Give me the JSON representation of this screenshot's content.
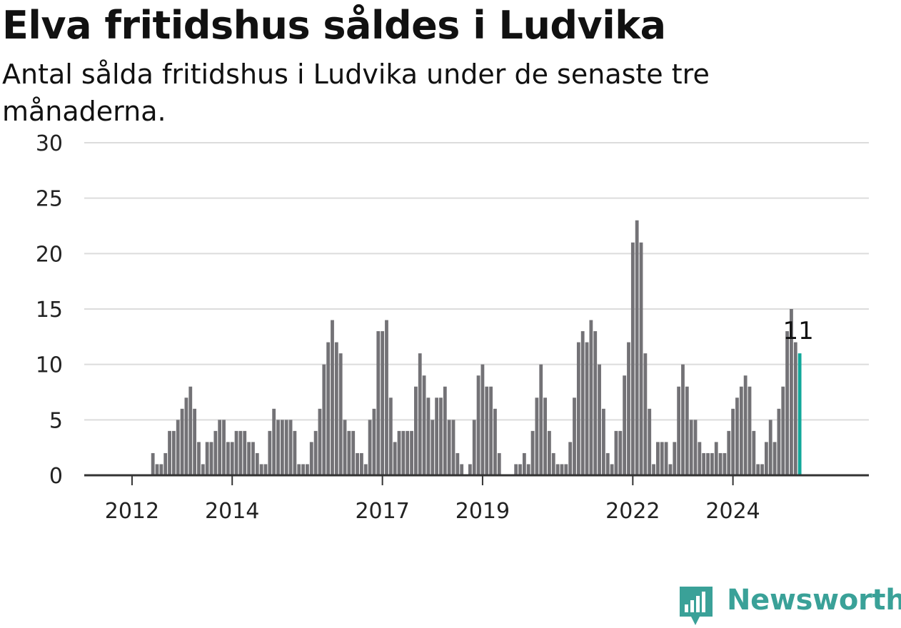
{
  "header": {
    "title": "Elva fritidshus såldes i Ludvika",
    "subtitle": "Antal sålda fritidshus i Ludvika under de senaste tre månaderna."
  },
  "brand": {
    "name": "Newsworthy",
    "icon": "newsworthy-logo-icon",
    "color": "#3aa198"
  },
  "chart_data": {
    "type": "bar",
    "ylim": [
      0,
      30
    ],
    "yticks": [
      0,
      5,
      10,
      15,
      20,
      25,
      30
    ],
    "grid": true,
    "bar_color": "#737276",
    "highlight_color": "#12a89a",
    "first_month": "2011-10",
    "xticks": [
      {
        "label": "2012",
        "month": "2012-01"
      },
      {
        "label": "2014",
        "month": "2014-01"
      },
      {
        "label": "2017",
        "month": "2017-01"
      },
      {
        "label": "2019",
        "month": "2019-01"
      },
      {
        "label": "2022",
        "month": "2022-01"
      },
      {
        "label": "2024",
        "month": "2024-01"
      }
    ],
    "values": [
      0,
      0,
      0,
      0,
      0,
      0,
      0,
      0,
      2,
      1,
      1,
      2,
      4,
      4,
      5,
      6,
      7,
      8,
      6,
      3,
      1,
      3,
      3,
      4,
      5,
      5,
      3,
      3,
      4,
      4,
      4,
      3,
      3,
      2,
      1,
      1,
      4,
      6,
      5,
      5,
      5,
      5,
      4,
      1,
      1,
      1,
      3,
      4,
      6,
      10,
      12,
      14,
      12,
      11,
      5,
      4,
      4,
      2,
      2,
      1,
      5,
      6,
      13,
      13,
      14,
      7,
      3,
      4,
      4,
      4,
      4,
      8,
      11,
      9,
      7,
      5,
      7,
      7,
      8,
      5,
      5,
      2,
      1,
      0,
      1,
      5,
      9,
      10,
      8,
      8,
      6,
      2,
      0,
      0,
      0,
      1,
      1,
      2,
      1,
      4,
      7,
      10,
      7,
      4,
      2,
      1,
      1,
      1,
      3,
      7,
      12,
      13,
      12,
      14,
      13,
      10,
      6,
      2,
      1,
      4,
      4,
      9,
      12,
      21,
      23,
      21,
      11,
      6,
      1,
      3,
      3,
      3,
      1,
      3,
      8,
      10,
      8,
      5,
      5,
      3,
      2,
      2,
      2,
      3,
      2,
      2,
      4,
      6,
      7,
      8,
      9,
      8,
      4,
      1,
      1,
      3,
      5,
      3,
      6,
      8,
      13,
      15,
      12,
      11
    ],
    "last_value_label": "11"
  }
}
